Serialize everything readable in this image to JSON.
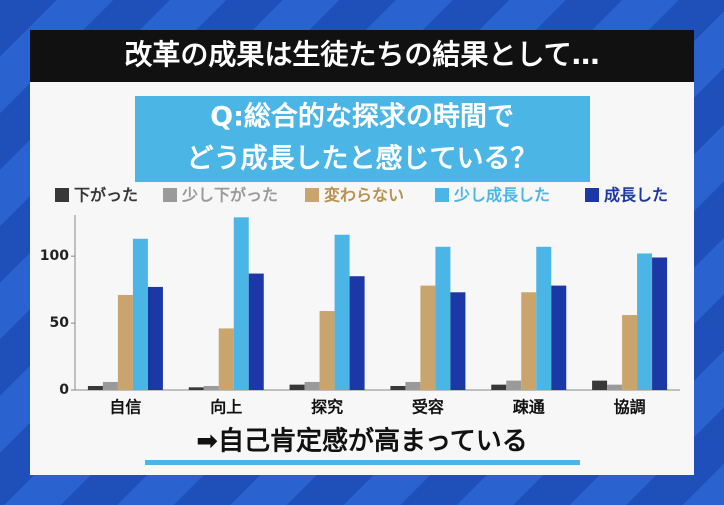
{
  "banner": "改革の成果は生徒たちの結果として…",
  "caption": "➡自己肯定感が高まっている",
  "chart_data": {
    "type": "bar",
    "title": [
      "Q:総合的な探求の時間で",
      "どう成長したと感じている？"
    ],
    "categories": [
      "自信",
      "向上",
      "探究",
      "受容",
      "疎通",
      "協調"
    ],
    "series": [
      {
        "name": "下がった",
        "color": "#383838",
        "values": [
          3,
          2,
          4,
          3,
          4,
          7
        ]
      },
      {
        "name": "少し下がった",
        "color": "#9a9a9a",
        "values": [
          6,
          3,
          6,
          6,
          7,
          4
        ]
      },
      {
        "name": "変わらない",
        "color": "#c9a46c",
        "values": [
          71,
          46,
          59,
          78,
          73,
          56
        ]
      },
      {
        "name": "少し成長した",
        "color": "#4bb6e6",
        "values": [
          113,
          129,
          116,
          107,
          107,
          102
        ]
      },
      {
        "name": "成長した",
        "color": "#1c38a6",
        "values": [
          77,
          87,
          85,
          73,
          78,
          99
        ]
      }
    ],
    "ylim": [
      0,
      130
    ],
    "yticks": [
      0,
      50,
      100
    ]
  }
}
